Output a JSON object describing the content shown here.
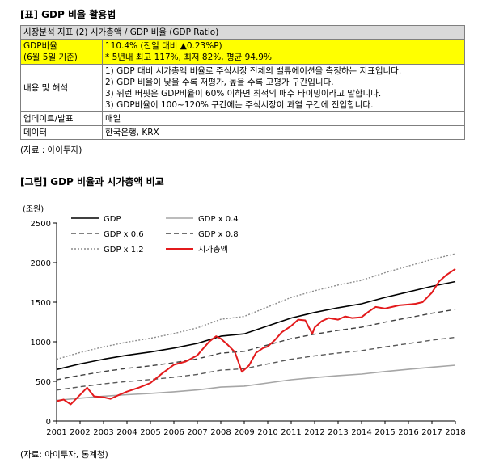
{
  "table_title": "[표] GDP 비율 활용법",
  "table": {
    "header": [
      "시장분석 지표 (2) 시가총액 / GDP 비율 (GDP Ratio)"
    ],
    "highlight": {
      "label_line1": "GDP비율",
      "label_line2": "(6월 5일 기준)",
      "value_line1": "110.4%  (전일 대비 ▲0.23%P)",
      "value_line2": "* 5년내 최고 117%, 최저 82%, 평균 94.9%"
    },
    "content": {
      "label": "내용 및 해석",
      "lines": [
        "1) GDP 대비 시가총액 비율로 주식시장 전체의 밸류에이션을 측정하는 지표입니다.",
        "2) GDP 비율이 낮을 수록 저평가, 높을 수록 고평가 구간입니다.",
        "3) 워런 버핏은 GDP비율이 60% 이하면 최적의 매수 타이밍이라고 말합니다.",
        "3) GDP비율이 100~120% 구간에는 주식시장이 과열 구간에 진입합니다."
      ]
    },
    "update": {
      "label": "업데이트/발표",
      "value": "매일"
    },
    "datasource": {
      "label": "데이터",
      "value": "한국은행, KRX"
    }
  },
  "table_source": "(자료 : 아이투자)",
  "chart_title": "[그림] GDP 비율과 시가총액 비교",
  "chart_source": "(자료: 아이투자, 통계청)",
  "chart_data": {
    "type": "line",
    "ylabel": "(조원)",
    "ylim": [
      0,
      2500
    ],
    "yticks": [
      "0",
      "500",
      "1000",
      "1500",
      "2000",
      "2500"
    ],
    "xlim": [
      2001,
      2018
    ],
    "xticks": [
      "2001",
      "2002",
      "2003",
      "2004",
      "2005",
      "2006",
      "2007",
      "2008",
      "2009",
      "2010",
      "2011",
      "2012",
      "2013",
      "2014",
      "2015",
      "2016",
      "2017",
      "2018"
    ],
    "grid": false,
    "legend": "top-left",
    "series": [
      {
        "name": "GDP",
        "color": "#000000",
        "style": "solid",
        "x": [
          2001,
          2002,
          2003,
          2004,
          2005,
          2006,
          2007,
          2008,
          2009,
          2010,
          2011,
          2012,
          2013,
          2014,
          2015,
          2016,
          2017,
          2018
        ],
        "y": [
          650,
          720,
          780,
          830,
          870,
          920,
          980,
          1070,
          1100,
          1200,
          1300,
          1370,
          1430,
          1480,
          1560,
          1630,
          1700,
          1760
        ]
      },
      {
        "name": "GDP x 0.4",
        "color": "#a6a6a6",
        "style": "solid",
        "x": [
          2001,
          2002,
          2003,
          2004,
          2005,
          2006,
          2007,
          2008,
          2009,
          2010,
          2011,
          2012,
          2013,
          2014,
          2015,
          2016,
          2017,
          2018
        ],
        "y": [
          260,
          288,
          312,
          332,
          348,
          368,
          392,
          428,
          440,
          480,
          520,
          548,
          572,
          592,
          624,
          652,
          680,
          704
        ]
      },
      {
        "name": "GDP x 0.6",
        "color": "#595959",
        "style": "dash",
        "x": [
          2001,
          2002,
          2003,
          2004,
          2005,
          2006,
          2007,
          2008,
          2009,
          2010,
          2011,
          2012,
          2013,
          2014,
          2015,
          2016,
          2017,
          2018
        ],
        "y": [
          390,
          432,
          468,
          498,
          522,
          552,
          588,
          642,
          660,
          720,
          780,
          822,
          858,
          888,
          936,
          978,
          1020,
          1056
        ]
      },
      {
        "name": "GDP x 0.8",
        "color": "#404040",
        "style": "dash",
        "x": [
          2001,
          2002,
          2003,
          2004,
          2005,
          2006,
          2007,
          2008,
          2009,
          2010,
          2011,
          2012,
          2013,
          2014,
          2015,
          2016,
          2017,
          2018
        ],
        "y": [
          520,
          576,
          624,
          664,
          696,
          736,
          784,
          856,
          880,
          960,
          1040,
          1096,
          1144,
          1184,
          1248,
          1304,
          1360,
          1408
        ]
      },
      {
        "name": "GDP x 1.2",
        "color": "#8c8c8c",
        "style": "dot",
        "x": [
          2001,
          2002,
          2003,
          2004,
          2005,
          2006,
          2007,
          2008,
          2009,
          2010,
          2011,
          2012,
          2013,
          2014,
          2015,
          2016,
          2017,
          2018
        ],
        "y": [
          780,
          864,
          936,
          996,
          1044,
          1104,
          1176,
          1284,
          1320,
          1440,
          1560,
          1644,
          1716,
          1776,
          1872,
          1956,
          2040,
          2112
        ]
      },
      {
        "name": "시가총액",
        "color": "#e31a1c",
        "style": "solid",
        "x": [
          2001,
          2001.3,
          2001.6,
          2002,
          2002.3,
          2002.6,
          2003,
          2003.3,
          2003.6,
          2004,
          2004.5,
          2005,
          2005.5,
          2006,
          2006.5,
          2007,
          2007.5,
          2007.8,
          2008,
          2008.3,
          2008.6,
          2008.9,
          2009.2,
          2009.5,
          2009.8,
          2010,
          2010.3,
          2010.6,
          2011,
          2011.3,
          2011.6,
          2011.9,
          2012,
          2012.3,
          2012.6,
          2013,
          2013.3,
          2013.6,
          2014,
          2014.3,
          2014.6,
          2015,
          2015.3,
          2015.6,
          2016,
          2016.3,
          2016.6,
          2017,
          2017.3,
          2017.6,
          2018
        ],
        "y": [
          250,
          270,
          210,
          330,
          420,
          310,
          300,
          280,
          320,
          370,
          420,
          480,
          600,
          710,
          750,
          830,
          1000,
          1070,
          1040,
          960,
          870,
          620,
          700,
          860,
          920,
          940,
          1020,
          1120,
          1200,
          1280,
          1270,
          1100,
          1180,
          1260,
          1300,
          1280,
          1320,
          1300,
          1310,
          1380,
          1440,
          1420,
          1440,
          1460,
          1470,
          1480,
          1500,
          1620,
          1760,
          1840,
          1920
        ]
      }
    ]
  }
}
